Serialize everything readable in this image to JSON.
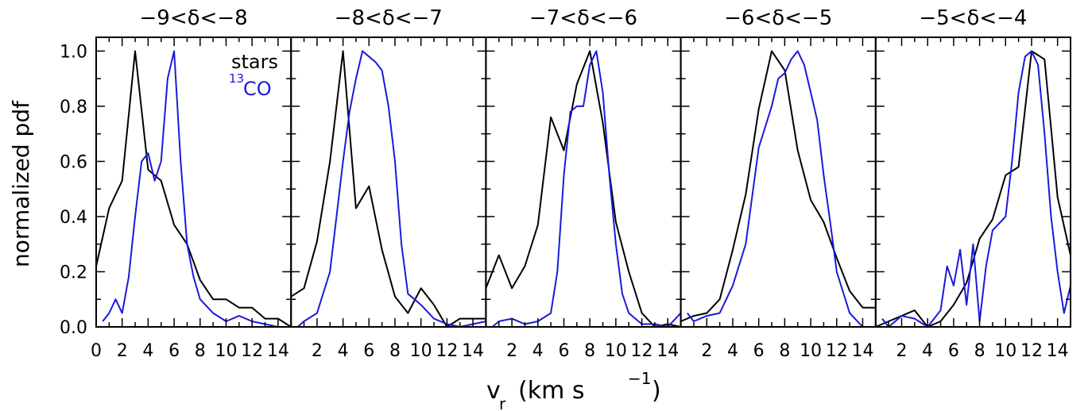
{
  "ylabel": "normalized pdf",
  "xlabel": {
    "main": "v",
    "sub": "r",
    "unit": "(km s",
    "sup": "−1",
    "close": ")"
  },
  "legend": {
    "stars": "stars",
    "co_sup": "13",
    "co_main": "CO"
  },
  "colors": {
    "stars": "#000000",
    "co": "#1a1ad9"
  },
  "yticks": [
    "0.0",
    "0.2",
    "0.4",
    "0.6",
    "0.8",
    "1.0"
  ],
  "xticks_first": [
    "0",
    "2",
    "4",
    "6",
    "8",
    "10",
    "12",
    "14"
  ],
  "xticks_other": [
    "2",
    "4",
    "6",
    "8",
    "10",
    "12",
    "14"
  ],
  "panel_titles": [
    "−9<δ<−8",
    "−8<δ<−7",
    "−7<δ<−6",
    "−6<δ<−5",
    "−5<δ<−4"
  ],
  "chart_data": [
    {
      "type": "line",
      "title": "−9<δ<−8",
      "xlim": [
        0,
        15
      ],
      "ylim": [
        0,
        1.05
      ],
      "grid": false,
      "series": [
        {
          "name": "stars",
          "x": [
            0,
            1,
            2,
            3,
            4,
            5,
            6,
            7,
            8,
            9,
            10,
            11,
            12,
            13,
            14,
            15
          ],
          "values": [
            0.22,
            0.43,
            0.53,
            1.0,
            0.57,
            0.53,
            0.37,
            0.3,
            0.17,
            0.1,
            0.1,
            0.07,
            0.07,
            0.03,
            0.03,
            0.0
          ]
        },
        {
          "name": "13CO",
          "x": [
            0.5,
            1,
            1.5,
            2,
            2.5,
            3,
            3.5,
            4,
            4.5,
            5,
            5.5,
            6,
            6.5,
            7,
            7.5,
            8,
            9,
            10,
            11,
            12,
            13,
            14,
            15
          ],
          "values": [
            0.02,
            0.05,
            0.1,
            0.05,
            0.18,
            0.4,
            0.6,
            0.63,
            0.53,
            0.6,
            0.9,
            1.0,
            0.6,
            0.3,
            0.18,
            0.1,
            0.05,
            0.02,
            0.04,
            0.02,
            0.01,
            0.0,
            0.0
          ]
        }
      ]
    },
    {
      "type": "line",
      "title": "−8<δ<−7",
      "xlim": [
        0,
        15
      ],
      "ylim": [
        0,
        1.05
      ],
      "grid": false,
      "series": [
        {
          "name": "stars",
          "x": [
            0,
            1,
            2,
            3,
            4,
            5,
            6,
            7,
            8,
            9,
            10,
            11,
            12,
            13,
            14,
            15
          ],
          "values": [
            0.11,
            0.14,
            0.31,
            0.6,
            1.0,
            0.43,
            0.51,
            0.28,
            0.11,
            0.05,
            0.14,
            0.08,
            0.0,
            0.03,
            0.03,
            0.03
          ]
        },
        {
          "name": "13CO",
          "x": [
            0.5,
            1,
            2,
            3,
            3.5,
            4,
            4.5,
            5,
            5.5,
            6,
            6.5,
            7,
            7.5,
            8,
            8.5,
            9,
            9.5,
            10,
            11,
            12,
            13,
            14,
            15
          ],
          "values": [
            0.0,
            0.02,
            0.05,
            0.2,
            0.4,
            0.6,
            0.78,
            0.9,
            1.0,
            0.98,
            0.96,
            0.93,
            0.8,
            0.6,
            0.3,
            0.12,
            0.1,
            0.08,
            0.03,
            0.01,
            0.0,
            0.01,
            0.02
          ]
        }
      ]
    },
    {
      "type": "line",
      "title": "−7<δ<−6",
      "xlim": [
        0,
        15
      ],
      "ylim": [
        0,
        1.05
      ],
      "grid": false,
      "series": [
        {
          "name": "stars",
          "x": [
            0,
            1,
            2,
            3,
            4,
            5,
            6,
            7,
            8,
            9,
            10,
            11,
            12,
            13,
            14,
            15
          ],
          "values": [
            0.14,
            0.26,
            0.14,
            0.22,
            0.37,
            0.76,
            0.64,
            0.88,
            1.0,
            0.74,
            0.38,
            0.2,
            0.05,
            0.0,
            0.01,
            0.0
          ]
        },
        {
          "name": "13CO",
          "x": [
            0.5,
            1,
            2,
            3,
            4,
            5,
            5.5,
            6,
            6.5,
            7,
            7.5,
            8,
            8.5,
            9,
            9.5,
            10,
            10.5,
            11,
            12,
            13,
            14,
            15
          ],
          "values": [
            0.0,
            0.02,
            0.03,
            0.01,
            0.02,
            0.05,
            0.2,
            0.55,
            0.78,
            0.8,
            0.8,
            0.95,
            1.0,
            0.85,
            0.55,
            0.3,
            0.12,
            0.05,
            0.01,
            0.01,
            0.0,
            0.05
          ]
        }
      ]
    },
    {
      "type": "line",
      "title": "−6<δ<−5",
      "xlim": [
        0,
        15
      ],
      "ylim": [
        0,
        1.05
      ],
      "grid": false,
      "series": [
        {
          "name": "stars",
          "x": [
            0,
            1,
            2,
            3,
            4,
            5,
            6,
            7,
            8,
            9,
            10,
            11,
            12,
            13,
            14,
            15
          ],
          "values": [
            0.02,
            0.04,
            0.05,
            0.1,
            0.28,
            0.48,
            0.79,
            1.0,
            0.93,
            0.64,
            0.46,
            0.38,
            0.25,
            0.13,
            0.07,
            0.07
          ]
        },
        {
          "name": "13CO",
          "x": [
            0.5,
            1,
            2,
            3,
            4,
            5,
            6,
            7,
            7.5,
            8,
            8.5,
            9,
            9.5,
            10,
            10.5,
            11,
            11.5,
            12,
            13,
            14,
            15
          ],
          "values": [
            0.05,
            0.02,
            0.04,
            0.05,
            0.15,
            0.3,
            0.65,
            0.8,
            0.9,
            0.92,
            0.97,
            1.0,
            0.95,
            0.85,
            0.75,
            0.55,
            0.38,
            0.2,
            0.05,
            0.0,
            0.0
          ]
        }
      ]
    },
    {
      "type": "line",
      "title": "−5<δ<−4",
      "xlim": [
        0,
        15
      ],
      "ylim": [
        0,
        1.05
      ],
      "grid": false,
      "series": [
        {
          "name": "stars",
          "x": [
            0,
            1,
            2,
            3,
            4,
            5,
            6,
            7,
            8,
            9,
            10,
            11,
            12,
            13,
            14,
            15
          ],
          "values": [
            0.0,
            0.02,
            0.04,
            0.06,
            0.0,
            0.02,
            0.08,
            0.16,
            0.32,
            0.39,
            0.55,
            0.58,
            1.0,
            0.97,
            0.47,
            0.26
          ]
        },
        {
          "name": "13CO",
          "x": [
            0.5,
            1,
            2,
            3,
            4,
            5,
            5.5,
            6,
            6.5,
            7,
            7.5,
            8,
            8.5,
            9,
            10,
            10.5,
            11,
            11.5,
            12,
            12.5,
            13,
            13.5,
            14,
            14.5,
            15
          ],
          "values": [
            0.03,
            0.0,
            0.04,
            0.03,
            0.0,
            0.06,
            0.22,
            0.15,
            0.28,
            0.08,
            0.3,
            0.02,
            0.22,
            0.35,
            0.4,
            0.6,
            0.85,
            0.98,
            1.0,
            0.95,
            0.7,
            0.4,
            0.2,
            0.05,
            0.15
          ]
        }
      ]
    }
  ]
}
